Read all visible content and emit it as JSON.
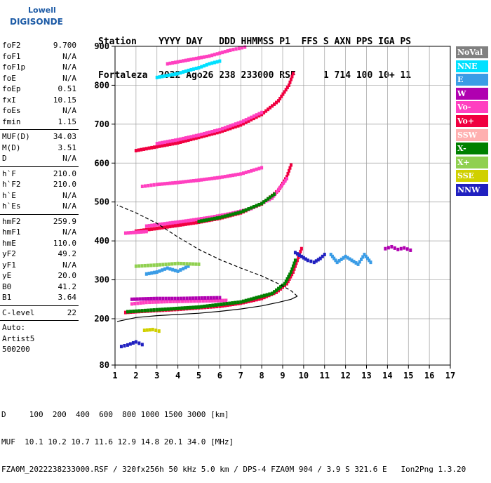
{
  "logo": {
    "line1": "Lowell",
    "line2": "DIGISONDE"
  },
  "header": {
    "row1": "Station    YYYY DAY   DDD HHMMSS P1  FFS S AXN PPS IGA PS",
    "row2": "Fortaleza  2022 Ago26 238 233000 RSF     1 714 100 10+ 11"
  },
  "params": {
    "group1": [
      {
        "label": "foF2",
        "value": "9.700"
      },
      {
        "label": "foF1",
        "value": "N/A"
      },
      {
        "label": "foF1p",
        "value": "N/A"
      },
      {
        "label": "foE",
        "value": "N/A"
      },
      {
        "label": "foEp",
        "value": "0.51"
      },
      {
        "label": "fxI",
        "value": "10.15"
      },
      {
        "label": "foEs",
        "value": "N/A"
      },
      {
        "label": "fmin",
        "value": "1.15"
      }
    ],
    "group2": [
      {
        "label": "MUF(D)",
        "value": "34.03"
      },
      {
        "label": "M(D)",
        "value": "3.51"
      },
      {
        "label": "D",
        "value": "N/A"
      }
    ],
    "group3": [
      {
        "label": "h`F",
        "value": "210.0"
      },
      {
        "label": "h`F2",
        "value": "210.0"
      },
      {
        "label": "h`E",
        "value": "N/A"
      },
      {
        "label": "h`Es",
        "value": "N/A"
      }
    ],
    "group4": [
      {
        "label": "hmF2",
        "value": "259.9"
      },
      {
        "label": "hmF1",
        "value": "N/A"
      },
      {
        "label": "hmE",
        "value": "110.0"
      },
      {
        "label": "yF2",
        "value": "49.2"
      },
      {
        "label": "yF1",
        "value": "N/A"
      },
      {
        "label": "yE",
        "value": "20.0"
      },
      {
        "label": "B0",
        "value": "41.2"
      },
      {
        "label": "B1",
        "value": "3.64"
      }
    ],
    "group5": [
      {
        "label": "C-level",
        "value": "22"
      }
    ],
    "auto": [
      "Auto:",
      "Artist5",
      "500200"
    ]
  },
  "legend": [
    {
      "label": "NoVal",
      "color": "#808080"
    },
    {
      "label": "NNE",
      "color": "#00e0ff"
    },
    {
      "label": "E",
      "color": "#3a9ce6"
    },
    {
      "label": "W",
      "color": "#b000b0"
    },
    {
      "label": "Vo-",
      "color": "#ff40c0"
    },
    {
      "label": "Vo+",
      "color": "#f00040"
    },
    {
      "label": "SSW",
      "color": "#ffb0b0"
    },
    {
      "label": "X-",
      "color": "#008000"
    },
    {
      "label": "X+",
      "color": "#90d050"
    },
    {
      "label": "SSE",
      "color": "#d0d000"
    },
    {
      "label": "NNW",
      "color": "#2020c0"
    }
  ],
  "chart_data": {
    "type": "scatter",
    "xlim": [
      1,
      17
    ],
    "ylim": [
      80,
      900
    ],
    "x_ticks": [
      1,
      2,
      3,
      4,
      5,
      6,
      7,
      8,
      9,
      10,
      11,
      12,
      13,
      14,
      15,
      16,
      17
    ],
    "y_ticks": [
      80,
      200,
      300,
      400,
      500,
      600,
      700,
      800,
      900
    ],
    "grid": true,
    "profile_solid": [
      [
        1.1,
        193
      ],
      [
        2,
        203
      ],
      [
        3,
        208
      ],
      [
        4,
        211
      ],
      [
        5,
        214
      ],
      [
        6,
        219
      ],
      [
        7,
        225
      ],
      [
        8,
        233
      ],
      [
        8.8,
        242
      ],
      [
        9.4,
        250
      ],
      [
        9.7,
        258
      ]
    ],
    "profile_dashed": [
      [
        9.7,
        258
      ],
      [
        9.4,
        272
      ],
      [
        8.8,
        290
      ],
      [
        8,
        310
      ],
      [
        7,
        330
      ],
      [
        6,
        352
      ],
      [
        5,
        378
      ],
      [
        4,
        410
      ],
      [
        3,
        445
      ],
      [
        2,
        472
      ],
      [
        1.1,
        492
      ]
    ],
    "traces": [
      {
        "color": "#f00040",
        "points": [
          [
            1.5,
            216
          ],
          [
            2,
            218
          ],
          [
            3,
            221
          ],
          [
            4,
            224
          ],
          [
            5,
            228
          ],
          [
            6,
            232
          ],
          [
            7,
            240
          ],
          [
            8,
            252
          ],
          [
            8.7,
            268
          ],
          [
            9.2,
            290
          ],
          [
            9.5,
            320
          ],
          [
            9.7,
            350
          ],
          [
            9.9,
            380
          ]
        ]
      },
      {
        "color": "#ff40c0",
        "points": [
          [
            1.8,
            238
          ],
          [
            2.5,
            242
          ],
          [
            3.5,
            244
          ],
          [
            4.5,
            245
          ],
          [
            5.5,
            246
          ],
          [
            6.3,
            247
          ]
        ]
      },
      {
        "color": "#b000b0",
        "points": [
          [
            1.8,
            250
          ],
          [
            3,
            252
          ],
          [
            4,
            252
          ],
          [
            5,
            253
          ],
          [
            6,
            254
          ]
        ]
      },
      {
        "color": "#008000",
        "points": [
          [
            1.6,
            218
          ],
          [
            3,
            223
          ],
          [
            5,
            230
          ],
          [
            7,
            243
          ],
          [
            8.5,
            265
          ],
          [
            9.1,
            290
          ],
          [
            9.4,
            320
          ],
          [
            9.6,
            350
          ]
        ]
      },
      {
        "color": "#f00040",
        "points": [
          [
            2,
            425
          ],
          [
            3,
            432
          ],
          [
            4,
            440
          ],
          [
            5,
            448
          ],
          [
            6,
            458
          ],
          [
            7,
            472
          ],
          [
            8,
            495
          ],
          [
            8.8,
            530
          ],
          [
            9.2,
            565
          ],
          [
            9.4,
            595
          ]
        ]
      },
      {
        "color": "#ff40c0",
        "points": [
          [
            2.5,
            438
          ],
          [
            3.5,
            445
          ],
          [
            4.5,
            452
          ],
          [
            5.5,
            460
          ],
          [
            6.5,
            470
          ],
          [
            7.5,
            483
          ],
          [
            8.5,
            510
          ],
          [
            9.2,
            560
          ]
        ]
      },
      {
        "color": "#008000",
        "points": [
          [
            5,
            450
          ],
          [
            6,
            460
          ],
          [
            7,
            474
          ],
          [
            8,
            496
          ],
          [
            8.6,
            520
          ]
        ]
      },
      {
        "color": "#f00040",
        "points": [
          [
            2,
            632
          ],
          [
            3,
            642
          ],
          [
            4,
            652
          ],
          [
            5,
            666
          ],
          [
            6,
            680
          ],
          [
            7,
            698
          ],
          [
            8,
            725
          ],
          [
            8.8,
            760
          ],
          [
            9.3,
            800
          ],
          [
            9.5,
            830
          ]
        ]
      },
      {
        "color": "#ff40c0",
        "points": [
          [
            3,
            650
          ],
          [
            4,
            660
          ],
          [
            5,
            672
          ],
          [
            6,
            686
          ],
          [
            7,
            705
          ],
          [
            8,
            730
          ]
        ]
      },
      {
        "color": "#ff40c0",
        "points": [
          [
            2.3,
            540
          ],
          [
            3,
            545
          ],
          [
            4,
            550
          ],
          [
            5,
            556
          ],
          [
            6,
            563
          ],
          [
            7,
            572
          ],
          [
            8,
            588
          ]
        ]
      },
      {
        "color": "#ff40c0",
        "points": [
          [
            1.5,
            420
          ],
          [
            2,
            422
          ],
          [
            2.5,
            424
          ]
        ]
      },
      {
        "color": "#ff40c0",
        "points": [
          [
            3.5,
            855
          ],
          [
            4.5,
            865
          ],
          [
            5.5,
            875
          ],
          [
            6.5,
            890
          ],
          [
            7.2,
            898
          ]
        ]
      },
      {
        "color": "#2020c0",
        "points": [
          [
            9.6,
            370
          ],
          [
            9.9,
            360
          ],
          [
            10.2,
            350
          ],
          [
            10.5,
            345
          ],
          [
            10.8,
            355
          ],
          [
            11,
            365
          ]
        ]
      },
      {
        "color": "#3a9ce6",
        "points": [
          [
            11.3,
            365
          ],
          [
            11.6,
            345
          ],
          [
            12,
            360
          ],
          [
            12.3,
            350
          ],
          [
            12.6,
            340
          ],
          [
            12.9,
            365
          ],
          [
            13.2,
            345
          ]
        ]
      },
      {
        "color": "#b000b0",
        "points": [
          [
            13.9,
            380
          ],
          [
            14.2,
            385
          ],
          [
            14.5,
            378
          ],
          [
            14.8,
            382
          ],
          [
            15.1,
            376
          ]
        ]
      },
      {
        "color": "#2020c0",
        "points": [
          [
            1.3,
            128
          ],
          [
            1.6,
            132
          ],
          [
            2,
            140
          ],
          [
            2.3,
            133
          ]
        ]
      },
      {
        "color": "#d0d000",
        "points": [
          [
            2.4,
            170
          ],
          [
            2.8,
            172
          ],
          [
            3.1,
            168
          ]
        ]
      },
      {
        "color": "#00e0ff",
        "points": [
          [
            3,
            820
          ],
          [
            3.5,
            825
          ],
          [
            4,
            830
          ],
          [
            4.5,
            838
          ],
          [
            5,
            845
          ],
          [
            5.5,
            855
          ],
          [
            6,
            862
          ]
        ]
      },
      {
        "color": "#3a9ce6",
        "points": [
          [
            2.5,
            315
          ],
          [
            3,
            320
          ],
          [
            3.5,
            330
          ],
          [
            4,
            322
          ],
          [
            4.5,
            335
          ]
        ]
      },
      {
        "color": "#90d050",
        "points": [
          [
            2,
            335
          ],
          [
            3,
            338
          ],
          [
            4,
            342
          ],
          [
            5,
            340
          ]
        ]
      }
    ],
    "x_scale_label": "D     100  200  400  600  800 1000 1500 3000 [km]",
    "muf_label": "MUF  10.1 10.2 10.7 11.6 12.9 14.8 20.1 34.0 [MHz]"
  },
  "footer": {
    "line1": "D     100  200  400  600  800 1000 1500 3000 [km]",
    "line2": "MUF  10.1 10.2 10.7 11.6 12.9 14.8 20.1 34.0 [MHz]",
    "line3": "FZA0M_2022238233000.RSF / 320fx256h 50 kHz 5.0 km / DPS-4 FZA0M 904 / 3.9 S 321.6 E   Ion2Png 1.3.20"
  }
}
